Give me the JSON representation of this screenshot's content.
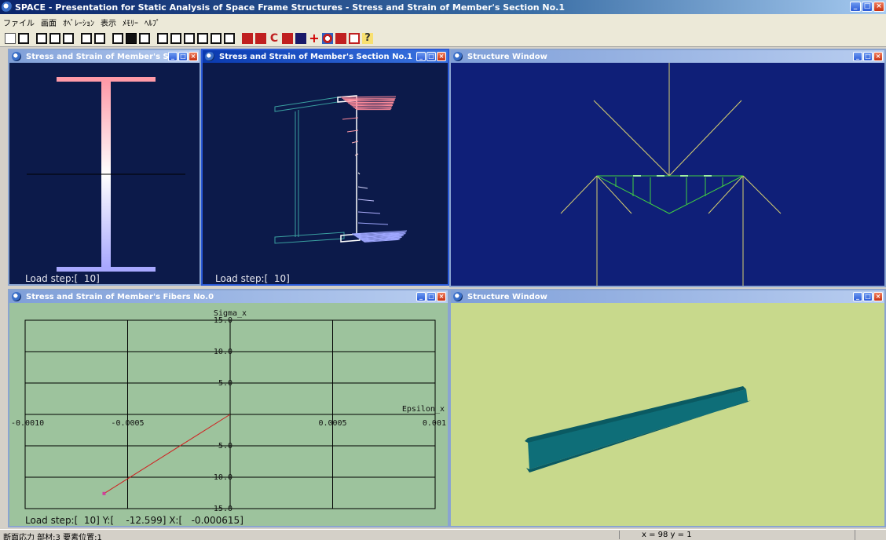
{
  "app": {
    "title": "SPACE - Presentation for Static Analysis of Space Frame Structures -  Stress and Strain of Member's Section No.1"
  },
  "menu": [
    "ファイル",
    "画面",
    "ｵﾍﾟﾚｰｼｮﾝ",
    "表示",
    "ﾒﾓﾘｰ",
    "ﾍﾙﾌﾟ"
  ],
  "toolbar_icons": [
    "new-file-icon",
    "print-icon",
    "step-start-icon",
    "stop-icon",
    "step-forward-icon",
    "fast-forward-icon",
    "rewind-icon",
    "zoom-icon",
    "grid-icon",
    "window-icon",
    "frame-icon",
    "frame-icon",
    "frame-icon",
    "frame-icon",
    "frame-icon",
    "frame-icon",
    "red-tool-icon",
    "red-tool-icon",
    "c-icon",
    "red-tool-icon",
    "navy-tool-icon",
    "cross-icon",
    "target-icon",
    "red-tool-icon",
    "box-icon",
    "help-icon"
  ],
  "windows": {
    "section_elevation": {
      "title": "Stress and Strain of Member's Sect...",
      "load_label": "Load step:[  10]"
    },
    "section_3d": {
      "title": "Stress and Strain of Member's Section No.1",
      "load_label": "Load step:[  10]"
    },
    "structure_top": {
      "title": "Structure Window"
    },
    "fiber_chart": {
      "title": "Stress and Strain of Member's Fibers No.0",
      "status": "Load step:[  10] Y:[    -12.599] X:[   -0.000615]"
    },
    "structure_bottom": {
      "title": "Structure Window"
    }
  },
  "chart_data": {
    "type": "line",
    "xlabel": "Epsilon_x",
    "ylabel": "Sigma_x",
    "xlim": [
      -0.001,
      0.001
    ],
    "ylim": [
      -15.0,
      15.0
    ],
    "x_tick_labels": [
      "-0.0010",
      "-0.0005",
      "0.0005",
      "0.001"
    ],
    "y_tick_labels": [
      "15.0",
      "10.0",
      "5.0",
      "-5.0",
      "-10.0",
      "-15.0"
    ],
    "grid": true,
    "series": [
      {
        "x": [
          0.0,
          -0.000615
        ],
        "y": [
          0.0,
          -12.599
        ]
      }
    ],
    "colors": {
      "background": "#9dc39d",
      "line": "#d02020",
      "grid": "#000000",
      "marker": "#d0409a"
    }
  },
  "statusbar": {
    "left": "断面応力 部材:3 要素位置:1",
    "coords": "x = 98  y = 1"
  },
  "colors": {
    "dark_canvas": "#0c1a4a",
    "structure_bg": "#0f1f78",
    "bottom_bg": "#c8d98c",
    "beam": "#0e6e78",
    "stress_pos": "#ff8a9a",
    "stress_neg": "#a0a8ff"
  }
}
